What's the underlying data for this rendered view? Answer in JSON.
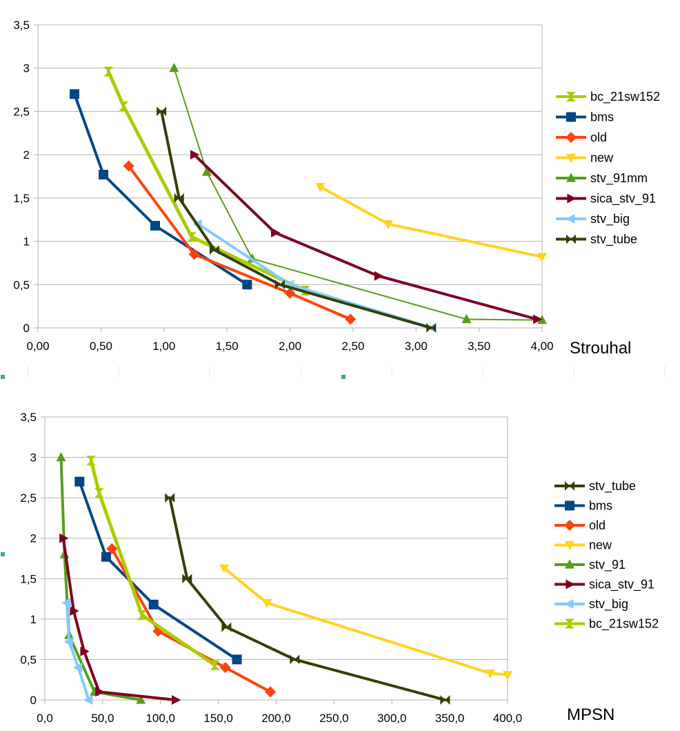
{
  "chart_data": [
    {
      "type": "line",
      "xlabel": "Strouhal",
      "xlim": [
        0,
        4
      ],
      "ylim": [
        0,
        3.5
      ],
      "x_ticks": [
        "0,00",
        "0,50",
        "1,00",
        "1,50",
        "2,00",
        "2,50",
        "3,00",
        "3,50",
        "4,00"
      ],
      "y_ticks": [
        "0",
        "0,5",
        "1",
        "1,5",
        "2",
        "2,5",
        "3",
        "3,5"
      ],
      "grid": "horizontal",
      "legend_position": "right",
      "legend": [
        "bc_21sw152",
        "bms",
        "old",
        "new",
        "stv_91mm",
        "sica_stv_91",
        "stv_big",
        "stv_tube"
      ],
      "series": [
        {
          "name": "bc_21sw152",
          "color": "#aacc00",
          "marker": "hourglass",
          "width": 5,
          "x": [
            0.56,
            0.68,
            1.22,
            2.12
          ],
          "y": [
            2.96,
            2.56,
            1.05,
            0.43
          ]
        },
        {
          "name": "bms",
          "color": "#004586",
          "marker": "square",
          "width": 4,
          "x": [
            0.29,
            0.52,
            0.93,
            1.66
          ],
          "y": [
            2.7,
            1.77,
            1.18,
            0.5
          ]
        },
        {
          "name": "old",
          "color": "#ff420e",
          "marker": "diamond",
          "width": 4,
          "x": [
            0.72,
            1.24,
            2.0,
            2.48
          ],
          "y": [
            1.87,
            0.85,
            0.4,
            0.1
          ]
        },
        {
          "name": "new",
          "color": "#ffd320",
          "marker": "triangle-down",
          "width": 4,
          "x": [
            2.24,
            2.78,
            4.0
          ],
          "y": [
            1.63,
            1.2,
            0.82
          ]
        },
        {
          "name": "stv_91mm",
          "color": "#579d1c",
          "marker": "triangle-up",
          "width": 2,
          "x": [
            1.08,
            1.34,
            1.7,
            3.4,
            4.0
          ],
          "y": [
            3.0,
            1.8,
            0.8,
            0.1,
            0.09
          ]
        },
        {
          "name": "sica_stv_91",
          "color": "#7e0021",
          "marker": "triangle-right",
          "width": 4,
          "x": [
            1.24,
            1.88,
            2.7,
            3.96
          ],
          "y": [
            2.0,
            1.1,
            0.6,
            0.1
          ]
        },
        {
          "name": "stv_big",
          "color": "#83caff",
          "marker": "triangle-left",
          "width": 4,
          "x": [
            1.27,
            2.0,
            3.13
          ],
          "y": [
            1.2,
            0.5,
            0.0
          ]
        },
        {
          "name": "stv_tube",
          "color": "#314004",
          "marker": "bowtie",
          "width": 4,
          "x": [
            0.98,
            1.12,
            1.4,
            1.92,
            3.12
          ],
          "y": [
            2.5,
            1.5,
            0.9,
            0.5,
            0.0
          ]
        }
      ]
    },
    {
      "type": "line",
      "xlabel": "MPSN",
      "xlim": [
        0,
        400
      ],
      "ylim": [
        0,
        3.5
      ],
      "x_ticks": [
        "0,0",
        "50,0",
        "100,0",
        "150,0",
        "200,0",
        "250,0",
        "300,0",
        "350,0",
        "400,0"
      ],
      "y_ticks": [
        "0",
        "0,5",
        "1",
        "1,5",
        "2",
        "2,5",
        "3",
        "3,5"
      ],
      "grid": "horizontal",
      "legend_position": "right",
      "legend": [
        "stv_tube",
        "bms",
        "old",
        "new",
        "stv_91",
        "sica_stv_91",
        "stv_big",
        "bc_21sw152"
      ],
      "series": [
        {
          "name": "stv_tube",
          "color": "#314004",
          "marker": "bowtie",
          "width": 4,
          "x": [
            108,
            123,
            157,
            216,
            346
          ],
          "y": [
            2.5,
            1.5,
            0.9,
            0.5,
            0.0
          ]
        },
        {
          "name": "bms",
          "color": "#004586",
          "marker": "square",
          "width": 4,
          "x": [
            30,
            53,
            94,
            166
          ],
          "y": [
            2.7,
            1.77,
            1.18,
            0.5
          ]
        },
        {
          "name": "old",
          "color": "#ff420e",
          "marker": "diamond",
          "width": 4,
          "x": [
            58,
            98,
            156,
            195
          ],
          "y": [
            1.87,
            0.85,
            0.4,
            0.1
          ]
        },
        {
          "name": "new",
          "color": "#ffd320",
          "marker": "triangle-down",
          "width": 4,
          "x": [
            155,
            192,
            385,
            400
          ],
          "y": [
            1.63,
            1.2,
            0.33,
            0.31
          ]
        },
        {
          "name": "stv_91",
          "color": "#579d1c",
          "marker": "triangle-up",
          "width": 4,
          "x": [
            14,
            17,
            21,
            43,
            83
          ],
          "y": [
            3.0,
            1.8,
            0.8,
            0.1,
            0.0
          ]
        },
        {
          "name": "sica_stv_91",
          "color": "#7e0021",
          "marker": "triangle-right",
          "width": 4,
          "x": [
            16,
            25,
            34,
            47,
            113
          ],
          "y": [
            2.0,
            1.1,
            0.6,
            0.1,
            0.0
          ]
        },
        {
          "name": "stv_big",
          "color": "#83caff",
          "marker": "triangle-left",
          "width": 4,
          "x": [
            19,
            21,
            29,
            38
          ],
          "y": [
            1.2,
            0.72,
            0.4,
            0.0
          ]
        },
        {
          "name": "bc_21sw152",
          "color": "#aacc00",
          "marker": "hourglass",
          "width": 5,
          "x": [
            40,
            47,
            84,
            147
          ],
          "y": [
            2.96,
            2.56,
            1.05,
            0.43
          ]
        }
      ]
    }
  ]
}
